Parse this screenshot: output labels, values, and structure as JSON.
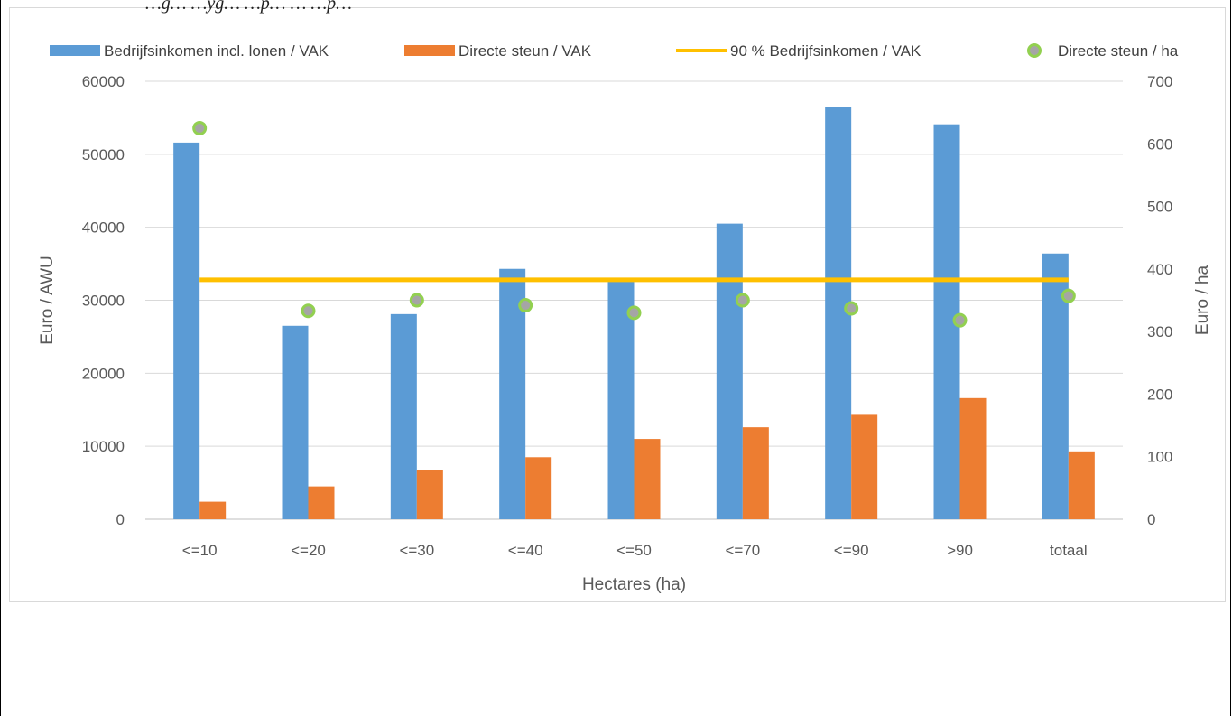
{
  "caption": "…g… …yg… …p… … …p…",
  "chart_data": {
    "type": "bar",
    "title": "",
    "xlabel": "Hectares (ha)",
    "ylabel": "Euro / AWU",
    "y2label": "Euro / ha",
    "ylim": [
      0,
      60000
    ],
    "y2lim": [
      0,
      700
    ],
    "yticks": [
      "0",
      "10000",
      "20000",
      "30000",
      "40000",
      "50000",
      "60000"
    ],
    "y2ticks": [
      "0",
      "100",
      "200",
      "300",
      "400",
      "500",
      "600",
      "700"
    ],
    "categories": [
      "<=10",
      "<=20",
      "<=30",
      "<=40",
      "<=50",
      "<=70",
      "<=90",
      ">90",
      "totaal"
    ],
    "grid": true,
    "legend_position": "top",
    "series": [
      {
        "name": "Bedrijfsinkomen incl. lonen / VAK",
        "kind": "bar",
        "axis": "left",
        "color": "#5b9bd5",
        "values": [
          51600,
          26500,
          28100,
          34300,
          32700,
          40500,
          56500,
          54100,
          36400
        ]
      },
      {
        "name": "Directe steun / VAK",
        "kind": "bar",
        "axis": "left",
        "color": "#ed7d31",
        "values": [
          2400,
          4500,
          6800,
          8500,
          11000,
          12600,
          14300,
          16600,
          9300
        ]
      },
      {
        "name": "90 % Bedrijfsinkomen / VAK",
        "kind": "line",
        "axis": "left",
        "color": "#ffc000",
        "values": [
          32800,
          32800,
          32800,
          32800,
          32800,
          32800,
          32800,
          32800,
          32800
        ]
      },
      {
        "name": "Directe steun / ha",
        "kind": "scatter",
        "axis": "right",
        "color": "#a5a5a5",
        "edge_color": "#92d050",
        "values": [
          625,
          333,
          350,
          342,
          330,
          350,
          337,
          318,
          357
        ]
      }
    ]
  }
}
